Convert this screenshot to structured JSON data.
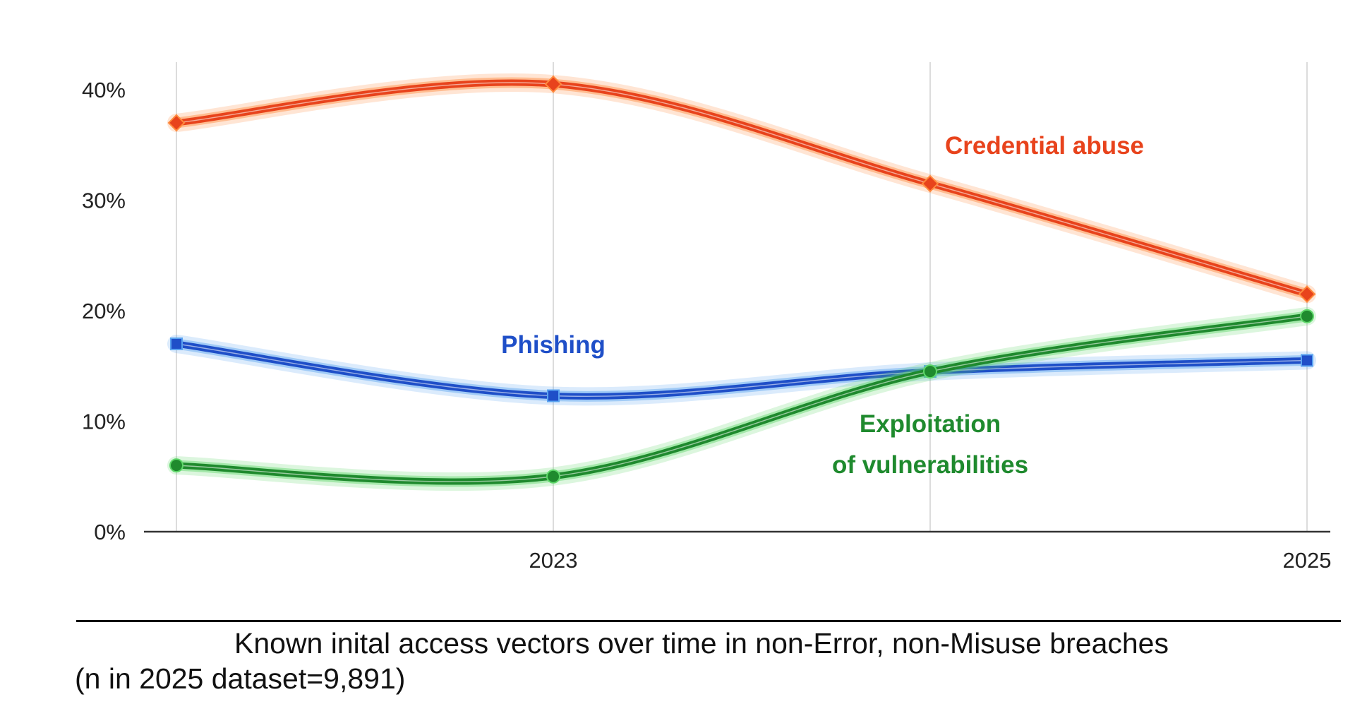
{
  "chart_data": {
    "type": "line",
    "x": [
      2022,
      2023,
      2024,
      2025
    ],
    "x_tick_labels": [
      "",
      "2023",
      "",
      "2025"
    ],
    "y_ticks": [
      0,
      10,
      20,
      30,
      40
    ],
    "y_tick_labels": [
      "0%",
      "10%",
      "20%",
      "30%",
      "40%"
    ],
    "ylim": [
      0,
      40
    ],
    "grid": "vertical",
    "series": [
      {
        "name": "Credential abuse",
        "label_lines": [
          "Credential abuse"
        ],
        "color": "#e8431c",
        "glow": "#ff8a3d",
        "marker": "diamond",
        "values": [
          37,
          40.5,
          31.5,
          21.5
        ]
      },
      {
        "name": "Phishing",
        "label_lines": [
          "Phishing"
        ],
        "color": "#1f4fc8",
        "glow": "#5aa3f0",
        "marker": "square",
        "values": [
          17,
          12.3,
          14.5,
          15.5
        ]
      },
      {
        "name": "Exploitation of vulnerabilities",
        "label_lines": [
          "Exploitation",
          "of vulnerabilities"
        ],
        "color": "#1f8a2e",
        "glow": "#5fd86a",
        "marker": "circle",
        "values": [
          6,
          5,
          14.5,
          19.5
        ]
      }
    ]
  },
  "caption": {
    "line1": "Known inital access vectors over time in non-Error, non-Misuse breaches",
    "line2": "(n in 2025 dataset=9,891)"
  }
}
